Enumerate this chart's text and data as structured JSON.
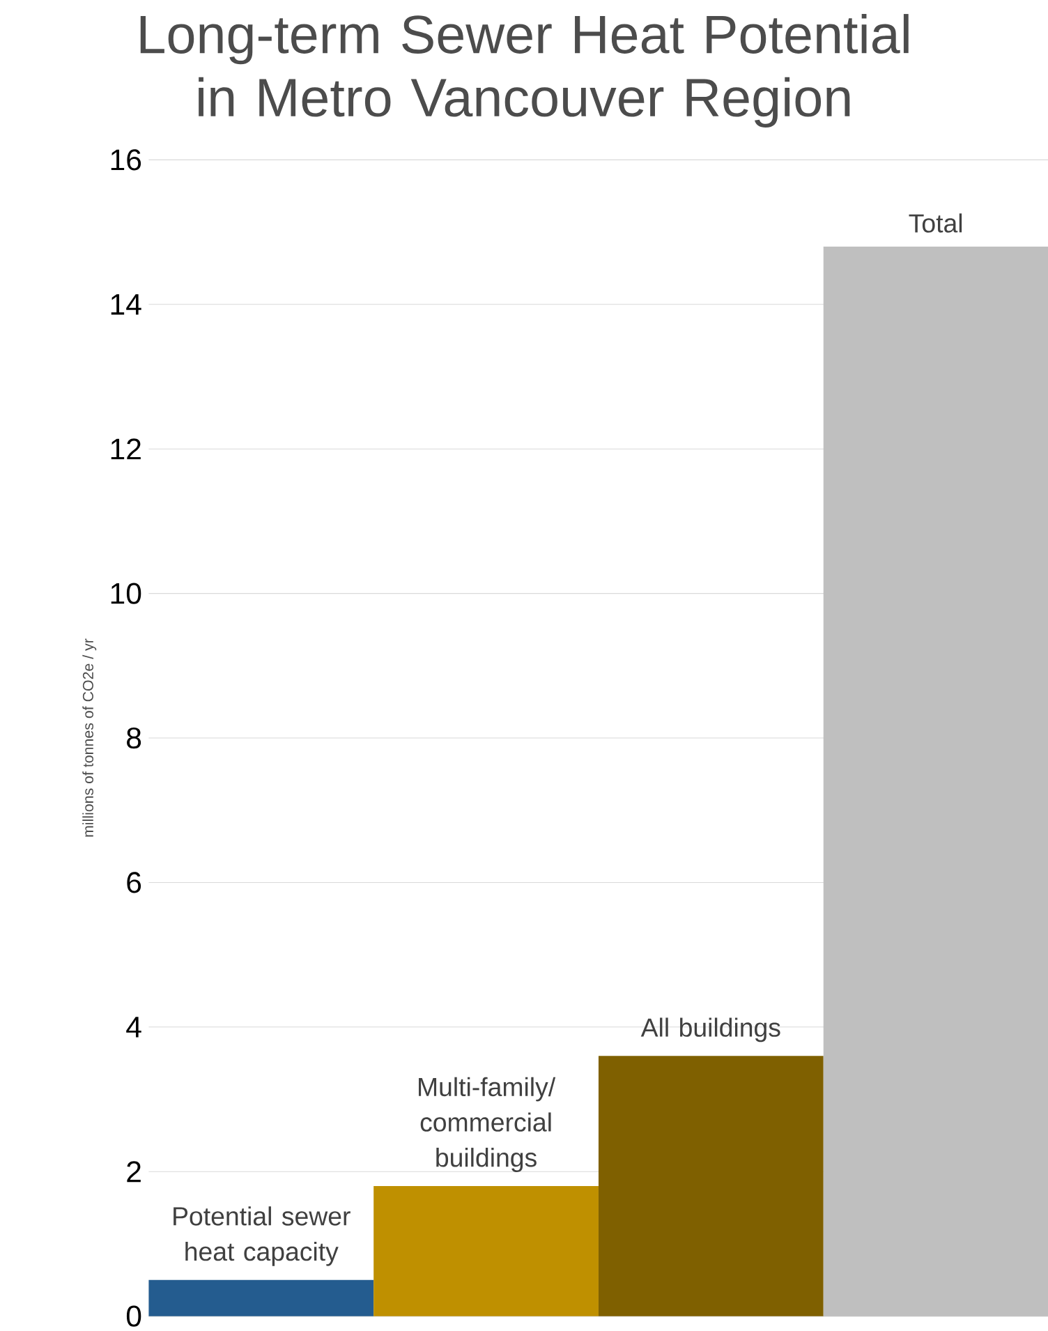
{
  "chart_data": {
    "type": "bar",
    "title": "Long-term Sewer Heat Potential in Metro Vancouver Region",
    "ylabel": "millions of tonnes of CO2e / yr",
    "categories": [
      "Potential sewer heat capacity",
      "Multi-family/ commercial buildings",
      "All buildings",
      "Total"
    ],
    "values": [
      0.5,
      1.8,
      3.6,
      14.8
    ],
    "colors": [
      "#245c8f",
      "#bf9000",
      "#7f6000",
      "#bfbfbf"
    ],
    "ylim": [
      0,
      16
    ],
    "yticks": [
      0,
      2,
      4,
      6,
      8,
      10,
      12,
      14,
      16
    ],
    "grid": "y"
  }
}
